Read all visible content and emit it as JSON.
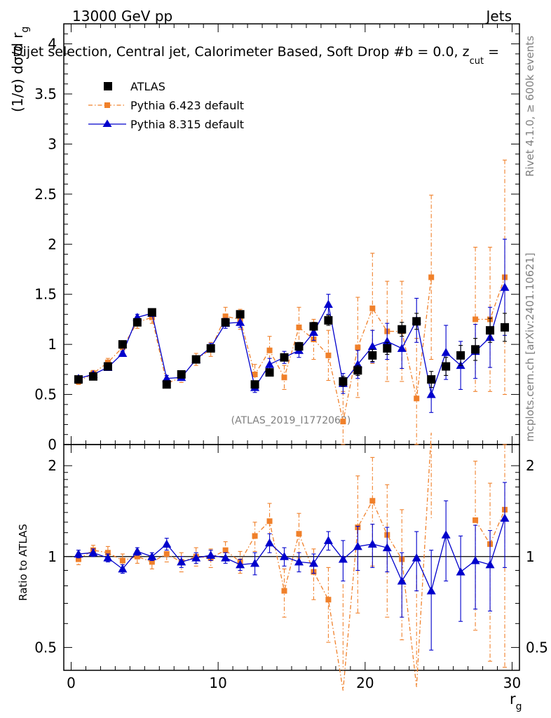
{
  "header": {
    "energy": "13000 GeV pp",
    "category": "Jets"
  },
  "title_line": "Dijet selection, Central jet, Calorimeter Based, Soft Drop #b = 0.0, z",
  "title_sub": "cut",
  "title_tail": " =",
  "side_text": {
    "rivet": "Rivet 4.1.0, ≥ 600k events",
    "mcplots": "mcplots.cern.ch [arXiv:2401.10621]"
  },
  "watermark": "(ATLAS_2019_I1772062)",
  "colors": {
    "data": "#000000",
    "pythia6": "#f0802a",
    "pythia8": "#0000cc"
  },
  "chart_data": {
    "type": "scatter",
    "xlabel": "r",
    "xlabel_sub": "g",
    "ylabel_prefix": "(1/σ) dσ/d r",
    "ylabel_sub": "g",
    "ratio_ylabel": "Ratio to ATLAS",
    "xlim": [
      -0.5,
      30.5
    ],
    "ylim": [
      0,
      4.2
    ],
    "ratio_ylim": [
      0.42,
      2.35
    ],
    "x_ticks": [
      "0",
      "10",
      "20",
      "30"
    ],
    "y_ticks": [
      "0",
      "0.5",
      "1",
      "1.5",
      "2",
      "2.5",
      "3",
      "3.5",
      "4"
    ],
    "ratio_ticks": [
      "0.5",
      "1",
      "2"
    ],
    "legend_position": "top-left",
    "x": [
      0.5,
      1.5,
      2.5,
      3.5,
      4.5,
      5.5,
      6.5,
      7.5,
      8.5,
      9.5,
      10.5,
      11.5,
      12.5,
      13.5,
      14.5,
      15.5,
      16.5,
      17.5,
      18.5,
      19.5,
      20.5,
      21.5,
      22.5,
      23.5,
      24.5,
      25.5,
      26.5,
      27.5,
      28.5,
      29.5
    ],
    "series": [
      {
        "name": "ATLAS",
        "marker": "square",
        "values": [
          0.65,
          0.68,
          0.78,
          1.0,
          1.22,
          1.32,
          0.6,
          0.7,
          0.85,
          0.96,
          1.22,
          1.3,
          0.6,
          0.72,
          0.87,
          0.98,
          1.18,
          1.24,
          0.63,
          0.74,
          0.89,
          0.96,
          1.15,
          1.23,
          0.65,
          0.78,
          0.89,
          0.95,
          1.14,
          1.17
        ],
        "errors": [
          0.02,
          0.02,
          0.02,
          0.02,
          0.02,
          0.02,
          0.02,
          0.02,
          0.02,
          0.02,
          0.02,
          0.02,
          0.02,
          0.03,
          0.03,
          0.04,
          0.04,
          0.05,
          0.05,
          0.05,
          0.06,
          0.06,
          0.07,
          0.08,
          0.08,
          0.09,
          0.1,
          0.11,
          0.12,
          0.14
        ]
      },
      {
        "name": "Pythia 6.423 default",
        "marker": "square-small",
        "values": [
          0.63,
          0.71,
          0.82,
          0.97,
          1.22,
          1.27,
          0.61,
          0.67,
          0.85,
          0.95,
          1.28,
          1.25,
          0.7,
          0.94,
          0.67,
          1.17,
          1.05,
          0.89,
          0.23,
          0.97,
          1.36,
          1.13,
          1.13,
          0.46,
          1.67,
          null,
          null,
          1.25,
          1.25,
          1.67
        ],
        "errors": [
          0.03,
          0.03,
          0.04,
          0.05,
          0.06,
          0.06,
          0.04,
          0.05,
          0.06,
          0.07,
          0.09,
          0.1,
          0.1,
          0.14,
          0.12,
          0.2,
          0.2,
          0.25,
          0.3,
          0.5,
          0.55,
          0.5,
          0.5,
          0.6,
          0.82,
          null,
          null,
          0.72,
          0.72,
          1.17
        ]
      },
      {
        "name": "Pythia 8.315 default",
        "marker": "triangle",
        "values": [
          0.66,
          0.7,
          0.77,
          0.91,
          1.27,
          1.31,
          0.66,
          0.67,
          0.85,
          0.97,
          1.21,
          1.22,
          0.57,
          0.8,
          0.87,
          0.94,
          1.12,
          1.4,
          0.61,
          0.8,
          0.98,
          1.03,
          0.96,
          1.24,
          0.5,
          0.92,
          0.79,
          0.93,
          1.07,
          1.57
        ],
        "errors": [
          0.02,
          0.02,
          0.02,
          0.02,
          0.03,
          0.03,
          0.03,
          0.03,
          0.03,
          0.04,
          0.05,
          0.05,
          0.05,
          0.06,
          0.06,
          0.07,
          0.08,
          0.1,
          0.1,
          0.14,
          0.16,
          0.18,
          0.2,
          0.22,
          0.18,
          0.27,
          0.24,
          0.27,
          0.3,
          0.48
        ]
      }
    ],
    "ratio_series": [
      {
        "name": "Pythia 6.423 default",
        "values": [
          0.98,
          1.05,
          1.03,
          0.97,
          1.0,
          0.96,
          1.02,
          0.96,
          1.0,
          0.99,
          1.05,
          0.96,
          1.17,
          1.31,
          0.77,
          1.19,
          0.89,
          0.72,
          0.36,
          1.25,
          1.53,
          1.18,
          0.98,
          0.37,
          2.57,
          null,
          null,
          1.32,
          1.1,
          1.43
        ],
        "errors": [
          0.04,
          0.04,
          0.05,
          0.05,
          0.05,
          0.05,
          0.06,
          0.07,
          0.07,
          0.07,
          0.07,
          0.08,
          0.13,
          0.19,
          0.14,
          0.2,
          0.17,
          0.2,
          0.45,
          0.6,
          0.6,
          0.55,
          0.45,
          0.5,
          1.25,
          null,
          null,
          0.75,
          0.65,
          1.0
        ]
      },
      {
        "name": "Pythia 8.315 default",
        "values": [
          1.02,
          1.03,
          0.99,
          0.91,
          1.04,
          1.0,
          1.1,
          0.96,
          0.99,
          1.01,
          0.99,
          0.94,
          0.95,
          1.11,
          1.0,
          0.96,
          0.95,
          1.13,
          0.98,
          1.08,
          1.1,
          1.07,
          0.83,
          0.99,
          0.77,
          1.18,
          0.89,
          0.97,
          0.94,
          1.34
        ],
        "errors": [
          0.03,
          0.03,
          0.03,
          0.03,
          0.03,
          0.03,
          0.05,
          0.04,
          0.04,
          0.04,
          0.04,
          0.04,
          0.08,
          0.08,
          0.07,
          0.07,
          0.07,
          0.08,
          0.15,
          0.18,
          0.18,
          0.18,
          0.2,
          0.22,
          0.28,
          0.35,
          0.28,
          0.3,
          0.28,
          0.42
        ]
      }
    ]
  }
}
